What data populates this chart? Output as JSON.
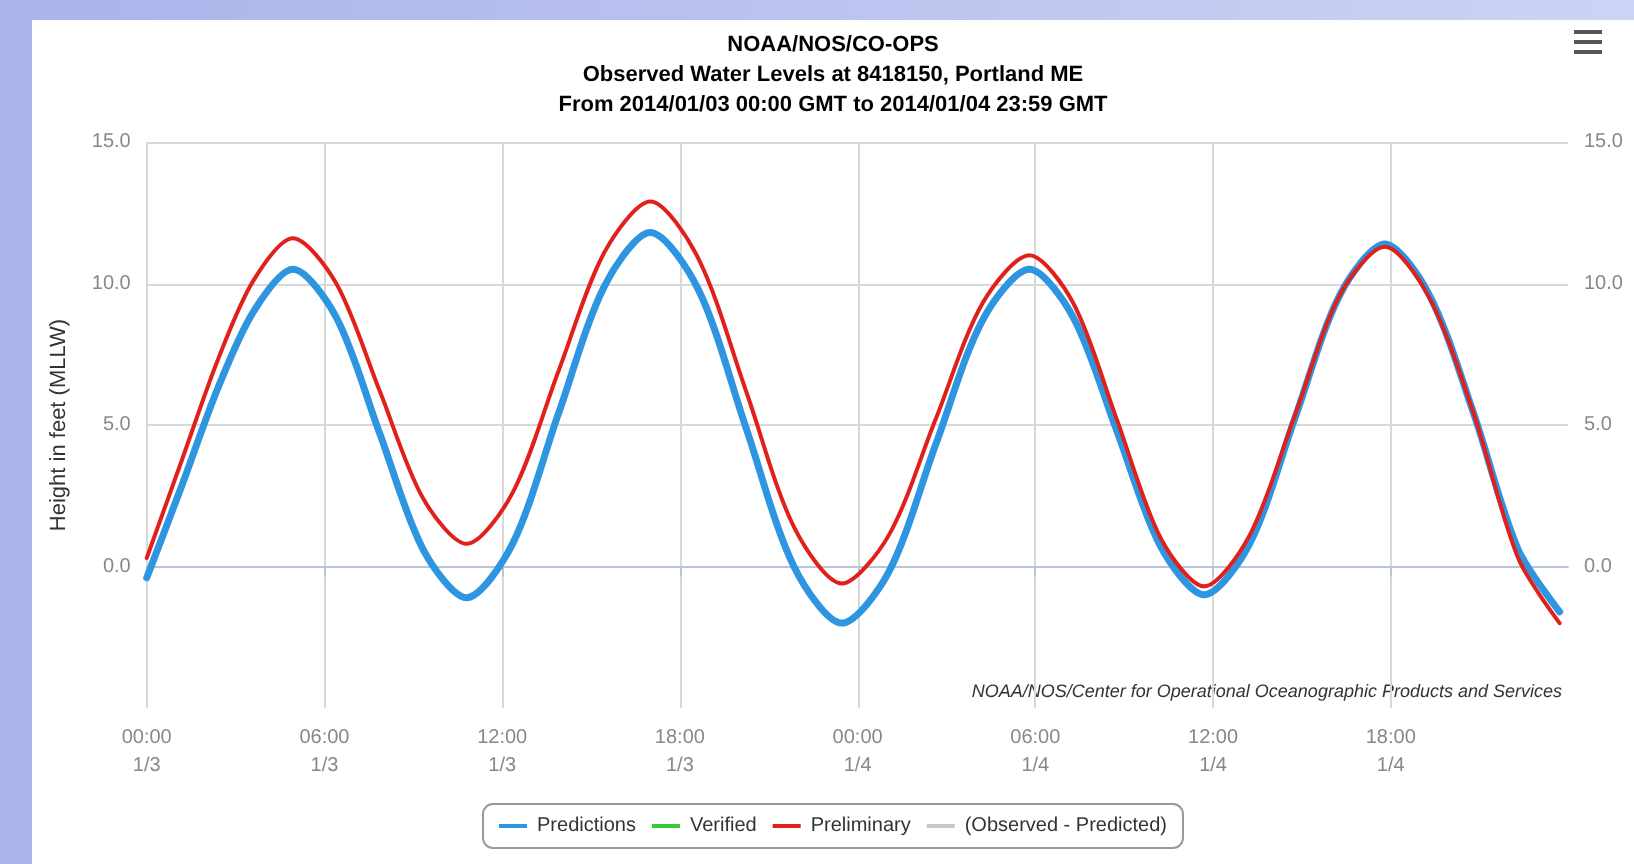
{
  "chart_data": {
    "type": "line",
    "title": "NOAA/NOS/CO-OPS",
    "subtitle": "Observed Water Levels at 8418150, Portland ME\nFrom 2014/01/03 00:00 GMT to 2014/01/04 23:59 GMT",
    "ylabel": "Height in feet (MLLW)",
    "annotations": [
      "NOAA/NOS/Center for Operational Oceanographic Products and Services"
    ],
    "x": [
      "2014-01-03T00:00",
      "2014-01-03T01:12",
      "2014-01-03T02:24",
      "2014-01-03T03:36",
      "2014-01-03T04:56",
      "2014-01-03T06:24",
      "2014-01-03T07:52",
      "2014-01-03T09:20",
      "2014-01-03T10:48",
      "2014-01-03T12:21",
      "2014-01-03T13:54",
      "2014-01-03T15:27",
      "2014-01-03T17:00",
      "2014-01-03T18:37",
      "2014-01-03T20:14",
      "2014-01-03T21:51",
      "2014-01-03T23:28",
      "2014-01-04T01:03",
      "2014-01-04T02:38",
      "2014-01-04T04:13",
      "2014-01-04T05:48",
      "2014-01-04T07:17",
      "2014-01-04T08:45",
      "2014-01-04T10:14",
      "2014-01-04T11:42",
      "2014-01-04T13:14",
      "2014-01-04T14:45",
      "2014-01-04T16:17",
      "2014-01-04T17:48",
      "2014-01-04T19:18",
      "2014-01-04T20:48",
      "2014-01-04T22:18",
      "2014-01-04T23:42"
    ],
    "series": [
      {
        "name": "Predictions",
        "color": "#2e95e0",
        "values": [
          -0.4,
          2.9,
          6.3,
          9.0,
          10.5,
          8.8,
          4.7,
          0.6,
          -1.1,
          0.8,
          5.4,
          9.9,
          11.8,
          9.8,
          4.9,
          0.0,
          -2.0,
          -0.2,
          4.3,
          8.7,
          10.5,
          8.8,
          4.8,
          0.7,
          -1.0,
          0.8,
          5.2,
          9.6,
          11.4,
          9.6,
          5.4,
          0.6,
          -1.6
        ]
      },
      {
        "name": "Verified",
        "color": "#33cc33",
        "values": [
          null,
          null,
          null,
          null,
          null,
          null,
          null,
          null,
          null,
          null,
          null,
          null,
          null,
          null,
          null,
          null,
          null,
          null,
          null,
          null,
          null,
          null,
          null,
          null,
          null,
          null,
          null,
          null,
          null,
          null,
          null,
          null,
          null
        ]
      },
      {
        "name": "Preliminary",
        "color": "#e0201b",
        "values": [
          0.3,
          3.8,
          7.3,
          10.1,
          11.6,
          10.0,
          6.2,
          2.4,
          0.8,
          2.6,
          6.9,
          11.1,
          12.9,
          10.9,
          6.2,
          1.4,
          -0.6,
          1.1,
          5.2,
          9.3,
          11.0,
          9.3,
          5.2,
          1.0,
          -0.7,
          1.1,
          5.3,
          9.6,
          11.3,
          9.5,
          5.4,
          0.3,
          -2.0
        ]
      },
      {
        "name": "(Observed - Predicted)",
        "color": "#c8c8c8",
        "values": [
          null,
          null,
          null,
          null,
          null,
          null,
          null,
          null,
          null,
          null,
          null,
          null,
          null,
          null,
          null,
          null,
          null,
          null,
          null,
          null,
          null,
          null,
          null,
          null,
          null,
          null,
          null,
          null,
          null,
          null,
          null,
          null,
          null
        ]
      }
    ],
    "xlim": [
      "2014-01-03T00:00",
      "2014-01-04T23:59"
    ],
    "xticks": [
      {
        "value": "2014-01-03T00:00",
        "label": "00:00\n1/3"
      },
      {
        "value": "2014-01-03T06:00",
        "label": "06:00\n1/3"
      },
      {
        "value": "2014-01-03T12:00",
        "label": "12:00\n1/3"
      },
      {
        "value": "2014-01-03T18:00",
        "label": "18:00\n1/3"
      },
      {
        "value": "2014-01-04T00:00",
        "label": "00:00\n1/4"
      },
      {
        "value": "2014-01-04T06:00",
        "label": "06:00\n1/4"
      },
      {
        "value": "2014-01-04T12:00",
        "label": "12:00\n1/4"
      },
      {
        "value": "2014-01-04T18:00",
        "label": "18:00\n1/4"
      }
    ],
    "ylim": [
      -5,
      15
    ],
    "yticks": [
      {
        "value": 0,
        "label": "0.0"
      },
      {
        "value": 5,
        "label": "5.0"
      },
      {
        "value": 10,
        "label": "10.0"
      },
      {
        "value": 15,
        "label": "15.0"
      }
    ],
    "y2lim": [
      -5,
      15
    ],
    "y2ticks": [
      {
        "value": 0,
        "label": "0.0"
      },
      {
        "value": 5,
        "label": "5.0"
      },
      {
        "value": 10,
        "label": "10.0"
      },
      {
        "value": 15,
        "label": "15.0"
      }
    ],
    "grid": true,
    "legend": "bottom",
    "marker": "none",
    "line_style": "solid"
  }
}
